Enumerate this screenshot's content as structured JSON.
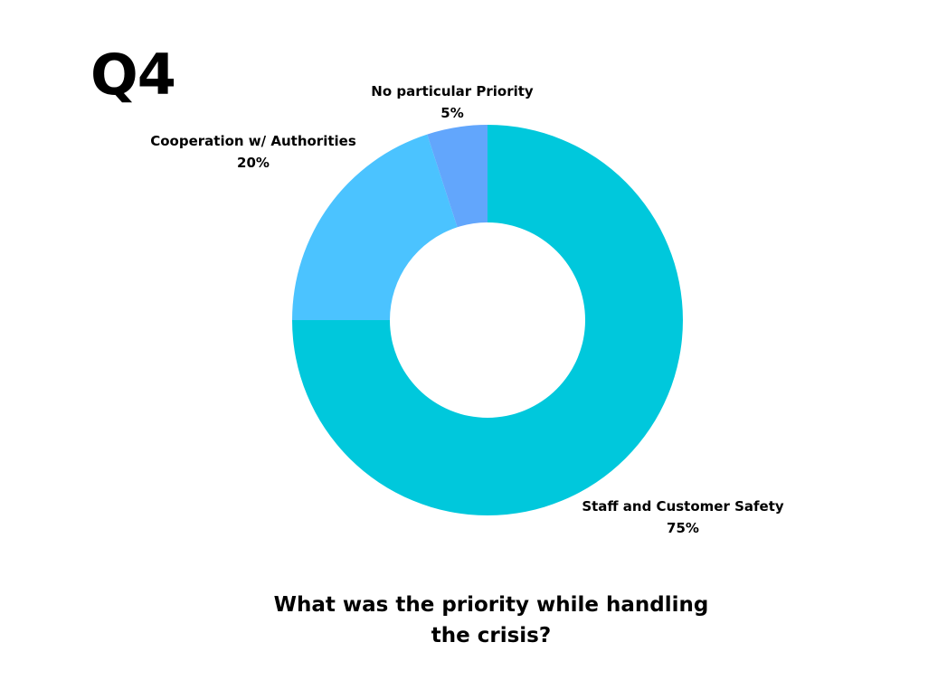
{
  "badge": "Q4",
  "question": "What was the priority while handling the crisis?",
  "chart_data": {
    "type": "pie",
    "style": "donut",
    "labels": [
      "Staff and Customer Safety",
      "Cooperation w/ Authorities",
      "No particular Priority"
    ],
    "values": [
      75,
      20,
      5
    ],
    "value_labels": [
      "75%",
      "20%",
      "5%"
    ],
    "colors": [
      "#00C8DC",
      "#4BC3FF",
      "#62A6FC"
    ]
  }
}
